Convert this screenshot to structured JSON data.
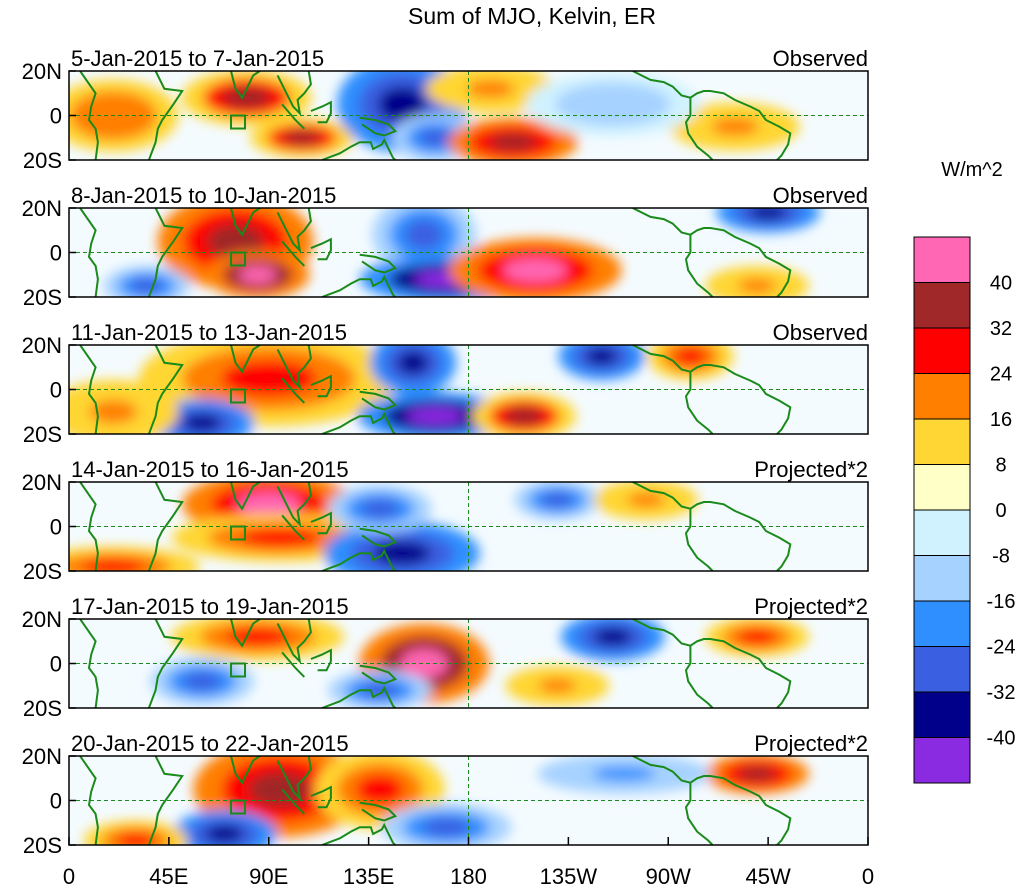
{
  "chart_data": {
    "type": "heatmap",
    "title": "Sum of MJO, Kelvin, ER",
    "colorbar": {
      "units": "W/m^2",
      "colors": [
        "#ff66b3",
        "#a02828",
        "#ff0000",
        "#ff7f00",
        "#ffd633",
        "#ffffc8",
        "#d0f2ff",
        "#a6d2ff",
        "#2f8fff",
        "#3a5fe0",
        "#00008b",
        "#8a2be2"
      ],
      "tick_labels": [
        "40",
        "32",
        "24",
        "16",
        "8",
        "0",
        "-8",
        "-16",
        "-24",
        "-32",
        "-40"
      ]
    },
    "x_ticks": [
      "0",
      "45E",
      "90E",
      "135E",
      "180",
      "135W",
      "90W",
      "45W",
      "0"
    ],
    "y_ticks": [
      "20N",
      "0",
      "20S"
    ],
    "panels": [
      {
        "title": "5-Jan-2015 to 7-Jan-2015",
        "label": "Observed",
        "features": [
          {
            "lon": 80,
            "lat": 8,
            "value": 34,
            "w": 15,
            "h": 7
          },
          {
            "lon": 20,
            "lat": 0,
            "value": 22,
            "w": 15,
            "h": 9
          },
          {
            "lon": 105,
            "lat": -10,
            "value": 32,
            "w": 12,
            "h": 5
          },
          {
            "lon": 150,
            "lat": 5,
            "value": -40,
            "w": 15,
            "h": 12
          },
          {
            "lon": 165,
            "lat": -10,
            "value": -32,
            "w": 10,
            "h": 6
          },
          {
            "lon": 200,
            "lat": -12,
            "value": 36,
            "w": 15,
            "h": 6
          },
          {
            "lon": 190,
            "lat": 12,
            "value": 20,
            "w": 15,
            "h": 6
          },
          {
            "lon": 300,
            "lat": -5,
            "value": 18,
            "w": 15,
            "h": 6
          },
          {
            "lon": 245,
            "lat": 5,
            "value": -12,
            "w": 20,
            "h": 8
          }
        ]
      },
      {
        "title": "8-Jan-2015 to 10-Jan-2015",
        "label": "Observed",
        "features": [
          {
            "lon": 75,
            "lat": 5,
            "value": 36,
            "w": 18,
            "h": 12
          },
          {
            "lon": 85,
            "lat": -10,
            "value": 44,
            "w": 12,
            "h": 6
          },
          {
            "lon": 160,
            "lat": 8,
            "value": -32,
            "w": 12,
            "h": 10
          },
          {
            "lon": 170,
            "lat": -12,
            "value": -44,
            "w": 20,
            "h": 6
          },
          {
            "lon": 210,
            "lat": -8,
            "value": 40,
            "w": 20,
            "h": 8
          },
          {
            "lon": 315,
            "lat": 18,
            "value": -36,
            "w": 12,
            "h": 5
          },
          {
            "lon": 310,
            "lat": -15,
            "value": 20,
            "w": 12,
            "h": 5
          },
          {
            "lon": 35,
            "lat": -15,
            "value": -30,
            "w": 10,
            "h": 5
          }
        ]
      },
      {
        "title": "11-Jan-2015 to 13-Jan-2015",
        "label": "Observed",
        "features": [
          {
            "lon": 90,
            "lat": 5,
            "value": 30,
            "w": 30,
            "h": 12
          },
          {
            "lon": 60,
            "lat": -15,
            "value": -38,
            "w": 12,
            "h": 6
          },
          {
            "lon": 155,
            "lat": 12,
            "value": -36,
            "w": 10,
            "h": 8
          },
          {
            "lon": 165,
            "lat": -12,
            "value": -44,
            "w": 18,
            "h": 6
          },
          {
            "lon": 205,
            "lat": -12,
            "value": 34,
            "w": 12,
            "h": 6
          },
          {
            "lon": 240,
            "lat": 15,
            "value": -40,
            "w": 10,
            "h": 6
          },
          {
            "lon": 280,
            "lat": 15,
            "value": 30,
            "w": 10,
            "h": 6
          },
          {
            "lon": 20,
            "lat": -10,
            "value": 20,
            "w": 15,
            "h": 8
          }
        ]
      },
      {
        "title": "14-Jan-2015 to 16-Jan-2015",
        "label": "Projected*2",
        "features": [
          {
            "lon": 90,
            "lat": 10,
            "value": 42,
            "w": 20,
            "h": 8
          },
          {
            "lon": 95,
            "lat": -5,
            "value": 30,
            "w": 25,
            "h": 6
          },
          {
            "lon": 150,
            "lat": -12,
            "value": -36,
            "w": 18,
            "h": 8
          },
          {
            "lon": 140,
            "lat": 8,
            "value": -28,
            "w": 12,
            "h": 6
          },
          {
            "lon": 20,
            "lat": -18,
            "value": 28,
            "w": 20,
            "h": 5
          },
          {
            "lon": 220,
            "lat": 12,
            "value": -30,
            "w": 10,
            "h": 5
          },
          {
            "lon": 260,
            "lat": 12,
            "value": 20,
            "w": 12,
            "h": 5
          }
        ]
      },
      {
        "title": "17-Jan-2015 to 19-Jan-2015",
        "label": "Projected*2",
        "features": [
          {
            "lon": 85,
            "lat": 12,
            "value": 30,
            "w": 20,
            "h": 6
          },
          {
            "lon": 160,
            "lat": 0,
            "value": 44,
            "w": 15,
            "h": 10
          },
          {
            "lon": 60,
            "lat": -8,
            "value": -28,
            "w": 12,
            "h": 6
          },
          {
            "lon": 140,
            "lat": -12,
            "value": -30,
            "w": 12,
            "h": 5
          },
          {
            "lon": 245,
            "lat": 12,
            "value": -38,
            "w": 12,
            "h": 6
          },
          {
            "lon": 310,
            "lat": 12,
            "value": 26,
            "w": 12,
            "h": 5
          },
          {
            "lon": 220,
            "lat": -10,
            "value": 18,
            "w": 12,
            "h": 5
          }
        ]
      },
      {
        "title": "20-Jan-2015 to 22-Jan-2015",
        "label": "Projected*2",
        "features": [
          {
            "lon": 95,
            "lat": 5,
            "value": 36,
            "w": 20,
            "h": 12
          },
          {
            "lon": 140,
            "lat": 5,
            "value": 30,
            "w": 15,
            "h": 10
          },
          {
            "lon": 70,
            "lat": -15,
            "value": -36,
            "w": 12,
            "h": 6
          },
          {
            "lon": 30,
            "lat": -18,
            "value": 30,
            "w": 12,
            "h": 5
          },
          {
            "lon": 310,
            "lat": 12,
            "value": 36,
            "w": 12,
            "h": 5
          },
          {
            "lon": 250,
            "lat": 12,
            "value": -20,
            "w": 20,
            "h": 5
          },
          {
            "lon": 170,
            "lat": -12,
            "value": -28,
            "w": 15,
            "h": 6
          }
        ]
      }
    ]
  }
}
